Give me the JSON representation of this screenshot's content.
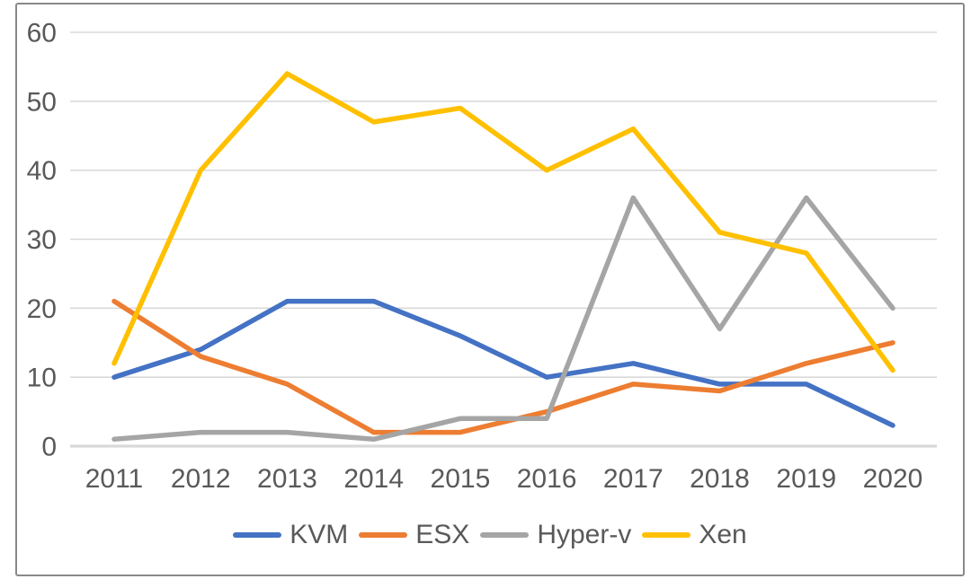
{
  "chart_data": {
    "type": "line",
    "title": "",
    "categories": [
      "2011",
      "2012",
      "2013",
      "2014",
      "2015",
      "2016",
      "2017",
      "2018",
      "2019",
      "2020"
    ],
    "series": [
      {
        "name": "KVM",
        "color": "#4472C4",
        "values": [
          10,
          14,
          21,
          21,
          16,
          10,
          12,
          9,
          9,
          3
        ]
      },
      {
        "name": "ESX",
        "color": "#ED7D31",
        "values": [
          21,
          13,
          9,
          2,
          2,
          5,
          9,
          8,
          12,
          15
        ]
      },
      {
        "name": "Hyper-v",
        "color": "#A5A5A5",
        "values": [
          1,
          2,
          2,
          1,
          4,
          4,
          36,
          17,
          36,
          20
        ]
      },
      {
        "name": "Xen",
        "color": "#FFC000",
        "values": [
          12,
          40,
          54,
          47,
          49,
          40,
          46,
          31,
          28,
          11
        ]
      }
    ],
    "xlabel": "",
    "ylabel": "",
    "y_axis": {
      "min": 0,
      "max": 60,
      "step": 10,
      "tick_labels": [
        "0",
        "10",
        "20",
        "30",
        "40",
        "50",
        "60"
      ]
    },
    "grid": true,
    "legend_position": "bottom",
    "gridline_color": "#D9D9D9",
    "axis_line_color": "#D9D9D9",
    "label_color": "#595959",
    "frame_border_color": "#898989",
    "background_color": "#FFFFFF"
  }
}
